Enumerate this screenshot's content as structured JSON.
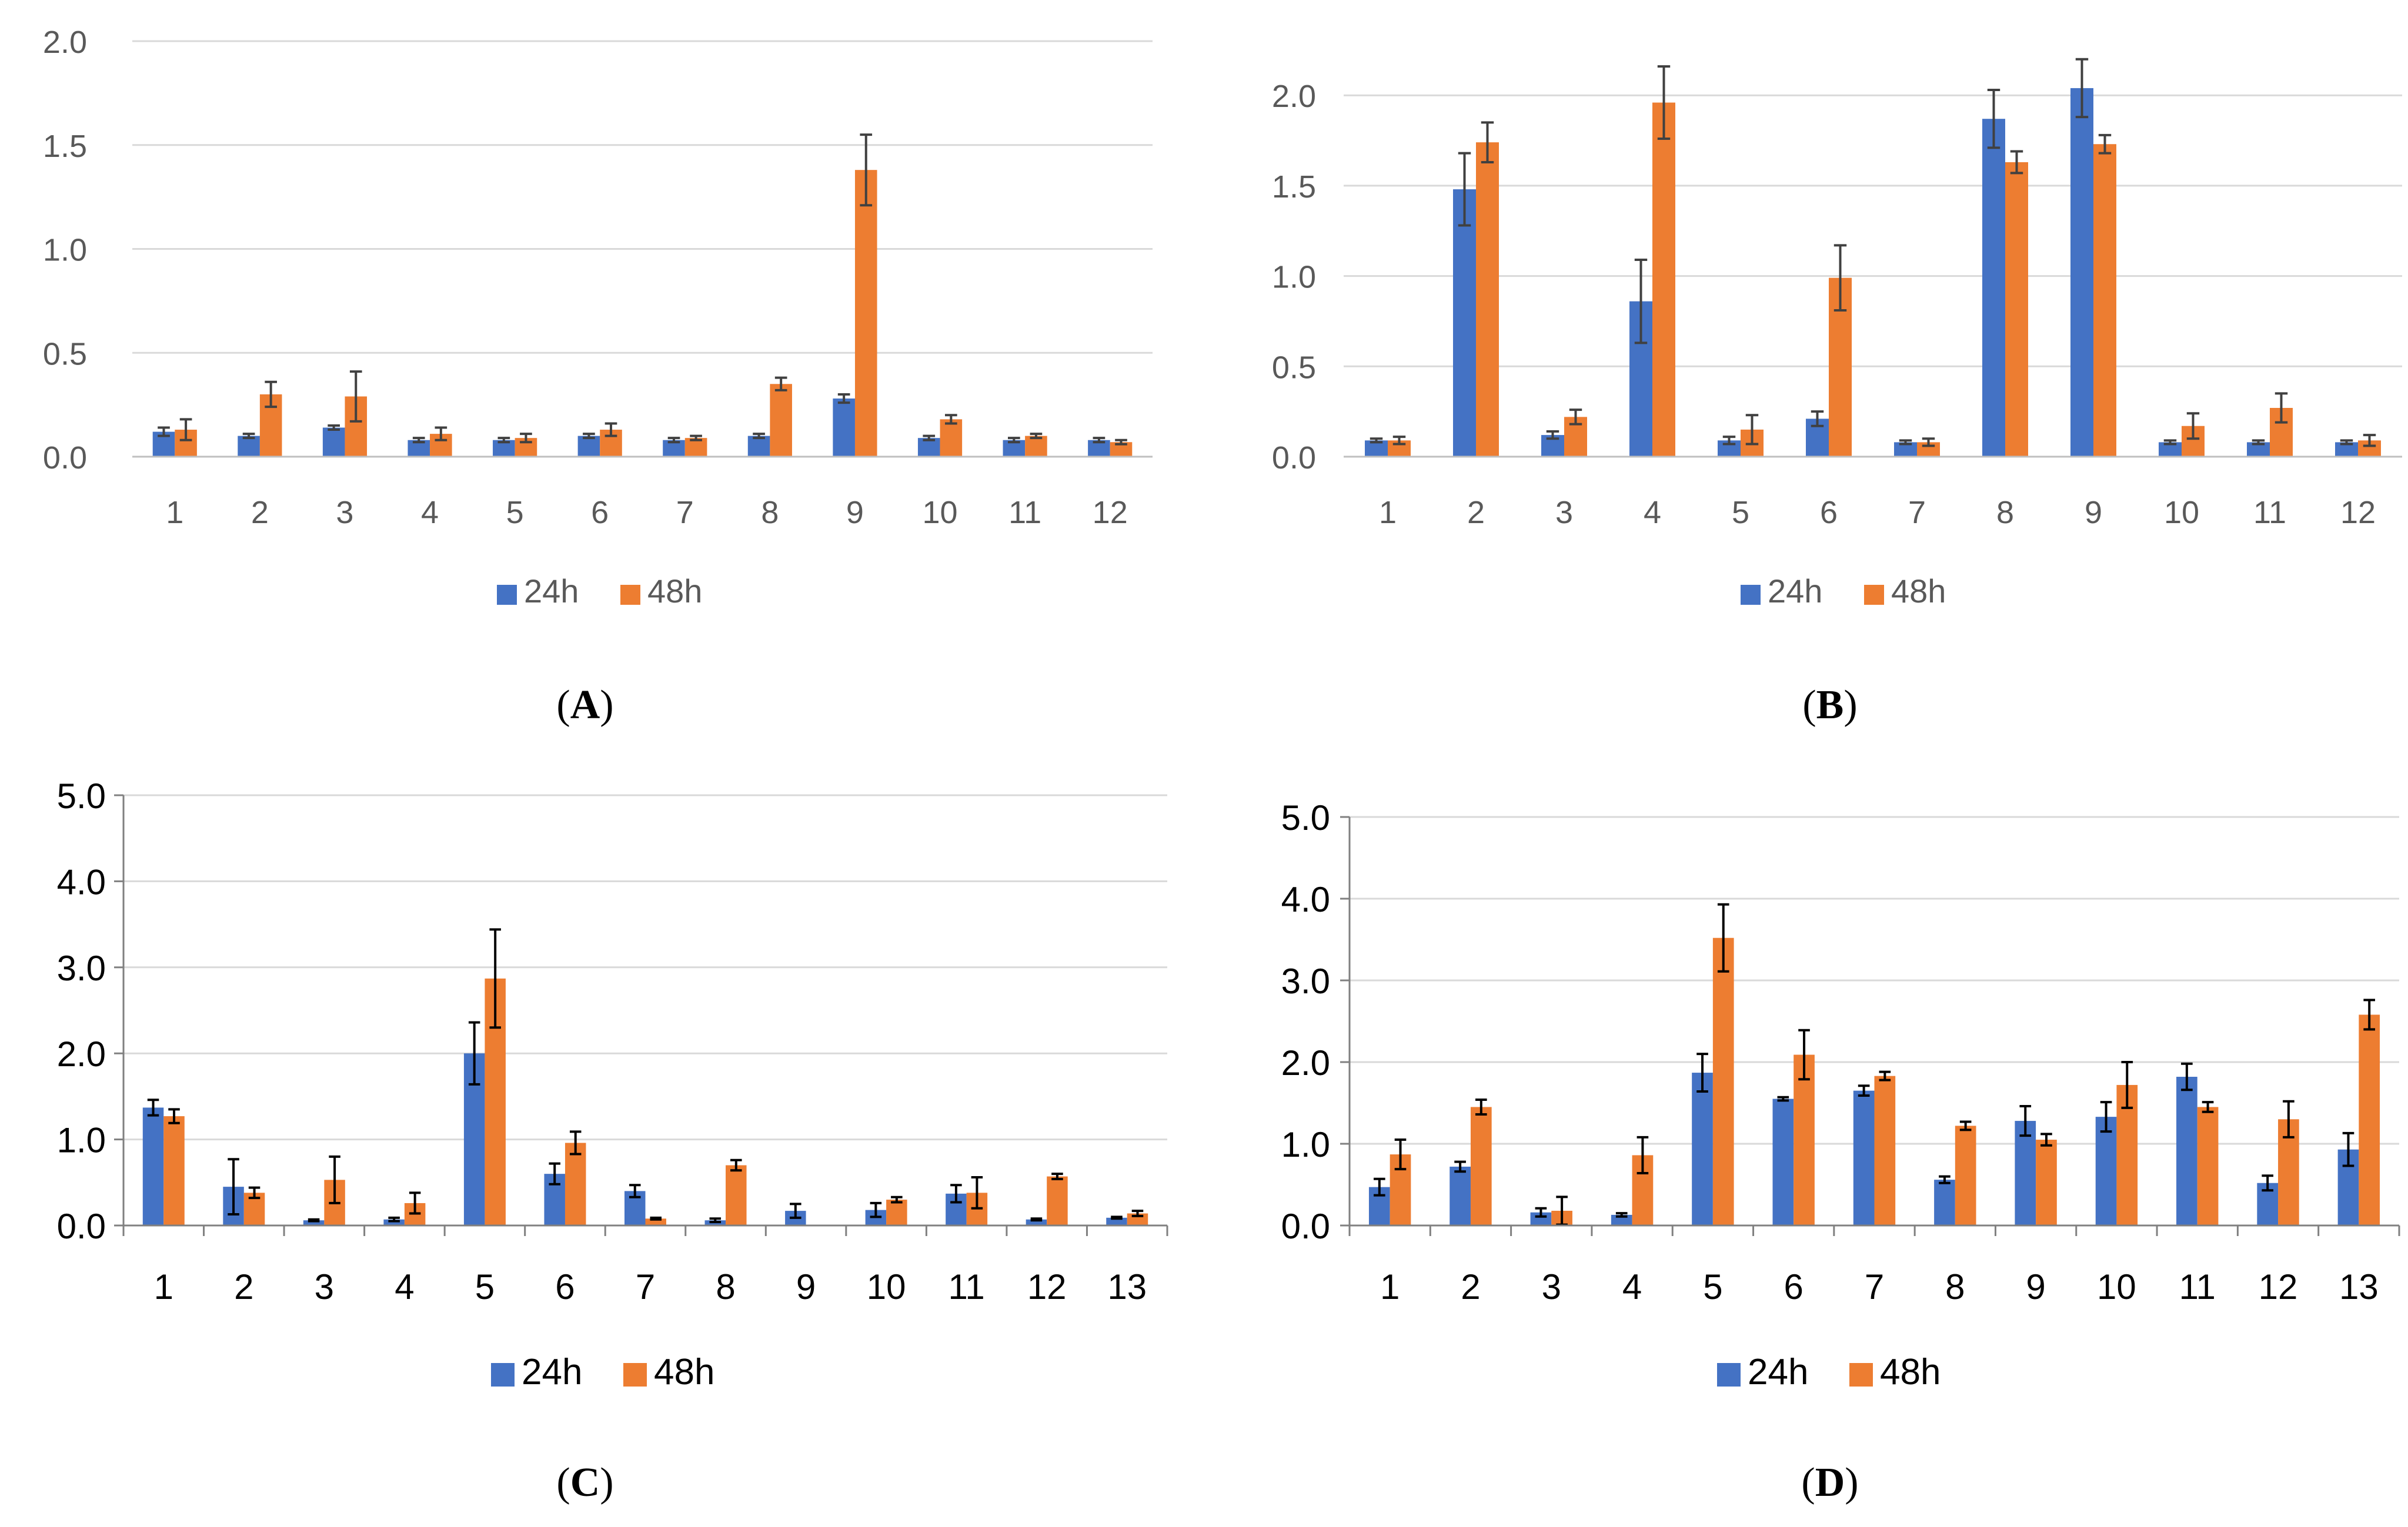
{
  "colors": {
    "series_24h": "#4472C4",
    "series_48h": "#ED7D31",
    "grid": "#D9D9D9",
    "axis_ab": "#BFBFBF",
    "axis_cd": "#808080",
    "error_bar": "#404040"
  },
  "chart_data": [
    {
      "panel": "A",
      "type": "bar",
      "caption_open": "(",
      "caption_letter": "A",
      "caption_close": ")",
      "categories": [
        "1",
        "2",
        "3",
        "4",
        "5",
        "6",
        "7",
        "8",
        "9",
        "10",
        "11",
        "12"
      ],
      "ylim": [
        0,
        2.0
      ],
      "yticks": [
        "0.0",
        "0.5",
        "1.0",
        "1.5",
        "2.0"
      ],
      "grid": true,
      "legend": "bottom-center",
      "series": [
        {
          "name": "24h",
          "values": [
            0.12,
            0.1,
            0.14,
            0.08,
            0.08,
            0.1,
            0.08,
            0.1,
            0.28,
            0.09,
            0.08,
            0.08
          ],
          "errors": [
            0.02,
            0.01,
            0.01,
            0.01,
            0.01,
            0.01,
            0.01,
            0.01,
            0.02,
            0.01,
            0.01,
            0.01
          ]
        },
        {
          "name": "48h",
          "values": [
            0.13,
            0.3,
            0.29,
            0.11,
            0.09,
            0.13,
            0.09,
            0.35,
            1.38,
            0.18,
            0.1,
            0.07
          ],
          "errors": [
            0.05,
            0.06,
            0.12,
            0.03,
            0.02,
            0.03,
            0.01,
            0.03,
            0.17,
            0.02,
            0.01,
            0.01
          ]
        }
      ]
    },
    {
      "panel": "B",
      "type": "bar",
      "caption_open": "(",
      "caption_letter": "B",
      "caption_close": ")",
      "categories": [
        "1",
        "2",
        "3",
        "4",
        "5",
        "6",
        "7",
        "8",
        "9",
        "10",
        "11",
        "12"
      ],
      "ylim": [
        0,
        2.3
      ],
      "yticks": [
        "0.0",
        "0.5",
        "1.0",
        "1.5",
        "2.0"
      ],
      "grid": true,
      "legend": "bottom-center",
      "series": [
        {
          "name": "24h",
          "values": [
            0.09,
            1.48,
            0.12,
            0.86,
            0.09,
            0.21,
            0.08,
            1.87,
            2.04,
            0.08,
            0.08,
            0.08
          ],
          "errors": [
            0.01,
            0.2,
            0.02,
            0.23,
            0.02,
            0.04,
            0.01,
            0.16,
            0.16,
            0.01,
            0.01,
            0.01
          ]
        },
        {
          "name": "48h",
          "values": [
            0.09,
            1.74,
            0.22,
            1.96,
            0.15,
            0.99,
            0.08,
            1.63,
            1.73,
            0.17,
            0.27,
            0.09
          ],
          "errors": [
            0.02,
            0.11,
            0.04,
            0.2,
            0.08,
            0.18,
            0.02,
            0.06,
            0.05,
            0.07,
            0.08,
            0.03
          ]
        }
      ]
    },
    {
      "panel": "C",
      "type": "bar",
      "caption_open": "(",
      "caption_letter": "C",
      "caption_close": ")",
      "categories": [
        "1",
        "2",
        "3",
        "4",
        "5",
        "6",
        "7",
        "8",
        "9",
        "10",
        "11",
        "12",
        "13"
      ],
      "ylim": [
        0,
        5.0
      ],
      "yticks": [
        "0.0",
        "1.0",
        "2.0",
        "3.0",
        "4.0",
        "5.0"
      ],
      "grid": true,
      "legend": "bottom-center",
      "series": [
        {
          "name": "24h",
          "values": [
            1.37,
            0.45,
            0.06,
            0.07,
            2.0,
            0.6,
            0.4,
            0.06,
            0.17,
            0.18,
            0.37,
            0.07,
            0.09
          ],
          "errors": [
            0.09,
            0.32,
            0.01,
            0.02,
            0.36,
            0.12,
            0.07,
            0.02,
            0.08,
            0.08,
            0.1,
            0.01,
            0.01
          ]
        },
        {
          "name": "48h",
          "values": [
            1.27,
            0.38,
            0.53,
            0.26,
            2.87,
            0.96,
            0.08,
            0.7,
            0.0,
            0.3,
            0.38,
            0.57,
            0.14
          ],
          "errors": [
            0.08,
            0.06,
            0.27,
            0.12,
            0.57,
            0.13,
            0.01,
            0.06,
            0.0,
            0.03,
            0.18,
            0.03,
            0.03
          ]
        }
      ]
    },
    {
      "panel": "D",
      "type": "bar",
      "caption_open": "(",
      "caption_letter": "D",
      "caption_close": ")",
      "categories": [
        "1",
        "2",
        "3",
        "4",
        "5",
        "6",
        "7",
        "8",
        "9",
        "10",
        "11",
        "12",
        "13"
      ],
      "ylim": [
        0,
        5.0
      ],
      "yticks": [
        "0.0",
        "1.0",
        "2.0",
        "3.0",
        "4.0",
        "5.0"
      ],
      "grid": true,
      "legend": "bottom-center",
      "series": [
        {
          "name": "24h",
          "values": [
            0.47,
            0.72,
            0.16,
            0.13,
            1.87,
            1.55,
            1.65,
            0.56,
            1.28,
            1.33,
            1.82,
            0.52,
            0.93
          ],
          "errors": [
            0.1,
            0.06,
            0.05,
            0.02,
            0.23,
            0.02,
            0.06,
            0.04,
            0.18,
            0.18,
            0.16,
            0.09,
            0.2
          ]
        },
        {
          "name": "48h",
          "values": [
            0.87,
            1.45,
            0.18,
            0.86,
            3.52,
            2.09,
            1.83,
            1.22,
            1.05,
            1.72,
            1.45,
            1.3,
            2.58
          ],
          "errors": [
            0.18,
            0.09,
            0.17,
            0.22,
            0.41,
            0.3,
            0.05,
            0.05,
            0.07,
            0.28,
            0.06,
            0.22,
            0.18
          ]
        }
      ]
    }
  ]
}
